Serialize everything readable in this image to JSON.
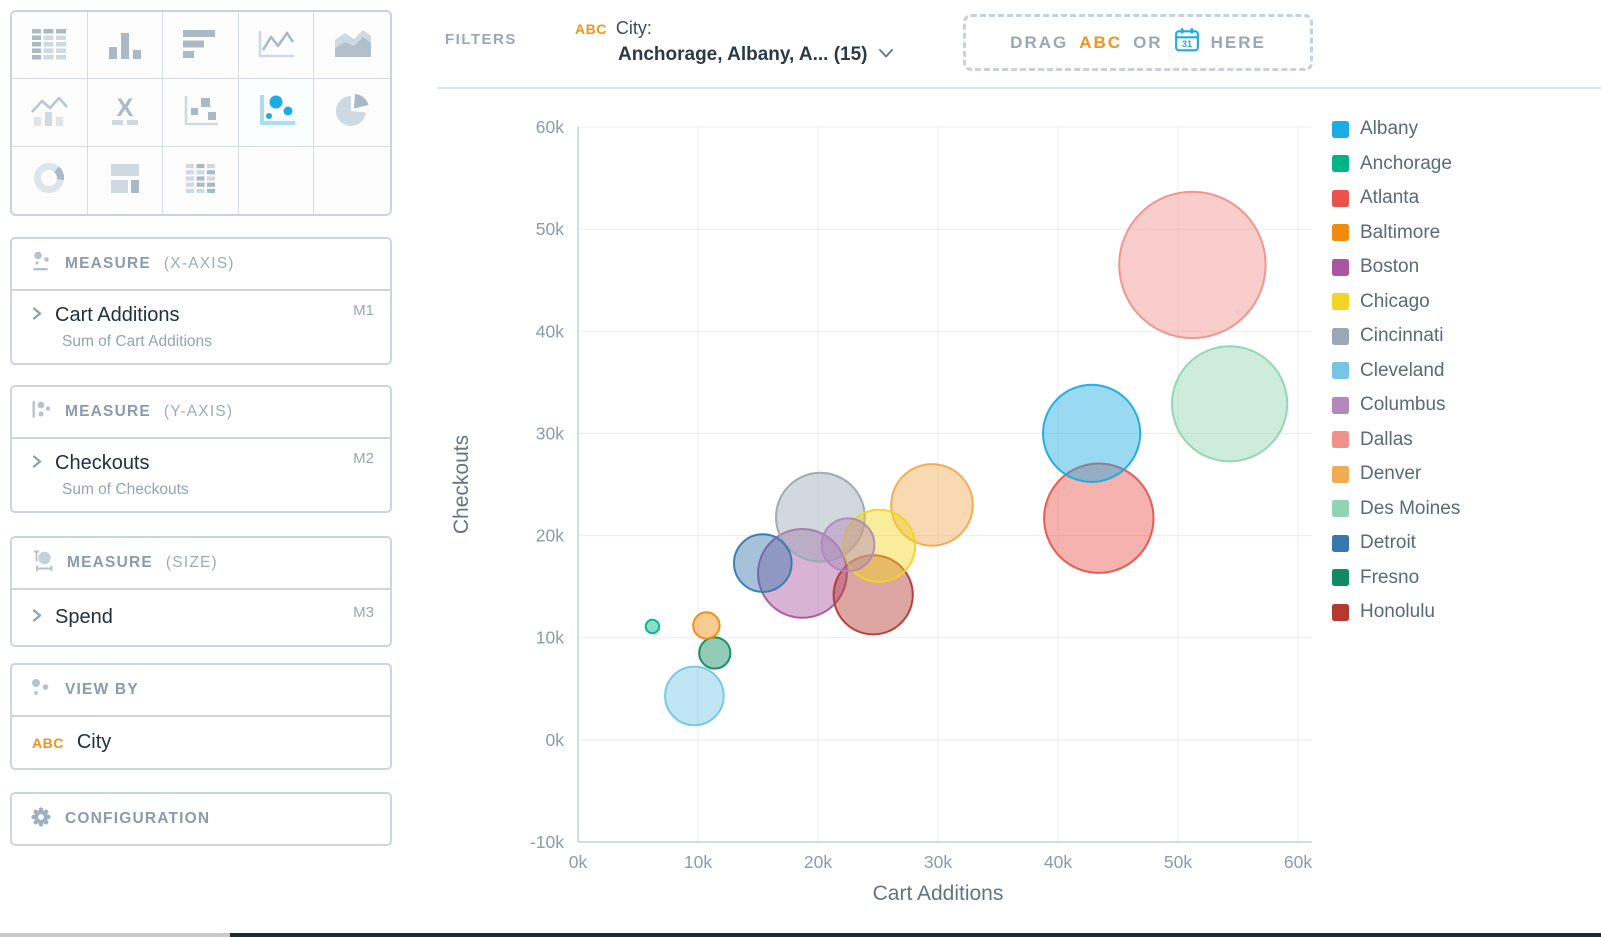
{
  "filter_bar": {
    "filters_label": "FILTERS",
    "filter": {
      "type_badge": "ABC",
      "field_label": "City:",
      "value": "Anchorage, Albany, A... (15)"
    },
    "drop_zone": {
      "word_drag": "DRAG",
      "word_abc": "ABC",
      "word_or": "OR",
      "word_here": "HERE",
      "calendar_day": "31"
    }
  },
  "sidebar": {
    "chart_picker": {
      "items": [
        {
          "icon": "table",
          "active": false
        },
        {
          "icon": "bar",
          "active": false
        },
        {
          "icon": "horizontal-bar",
          "active": false
        },
        {
          "icon": "line",
          "active": false
        },
        {
          "icon": "area",
          "active": false
        },
        {
          "icon": "combo",
          "active": false
        },
        {
          "icon": "x-metric",
          "active": false
        },
        {
          "icon": "scatter",
          "active": false
        },
        {
          "icon": "bubble",
          "active": true
        },
        {
          "icon": "pie",
          "active": false
        },
        {
          "icon": "donut",
          "active": false
        },
        {
          "icon": "layout",
          "active": false
        },
        {
          "icon": "pivot",
          "active": false
        },
        {
          "icon": "blank",
          "active": false
        },
        {
          "icon": "blank",
          "active": false
        }
      ]
    },
    "measure_x": {
      "title": "MEASURE",
      "subtitle": "(X-AXIS)",
      "field": "Cart Additions",
      "badge": "M1",
      "description": "Sum of Cart Additions"
    },
    "measure_y": {
      "title": "MEASURE",
      "subtitle": "(Y-AXIS)",
      "field": "Checkouts",
      "badge": "M2",
      "description": "Sum of Checkouts"
    },
    "measure_size": {
      "title": "MEASURE",
      "subtitle": "(SIZE)",
      "field": "Spend",
      "badge": "M3"
    },
    "view_by": {
      "title": "VIEW BY",
      "type_badge": "ABC",
      "field": "City"
    },
    "configuration": {
      "title": "CONFIGURATION"
    }
  },
  "chart_data": {
    "type": "bubble",
    "title": "",
    "xlabel": "Cart Additions",
    "ylabel": "Checkouts",
    "xlim": [
      0,
      60000
    ],
    "ylim": [
      -10000,
      60000
    ],
    "grid": true,
    "legend_position": "right",
    "size_measure": "Spend",
    "r_units": "x-axis units (Spend magnitudes are not labeled on screen; radii estimated from pixels)",
    "x_ticks": [
      {
        "value": 0,
        "label": "0k"
      },
      {
        "value": 10000,
        "label": "10k"
      },
      {
        "value": 20000,
        "label": "20k"
      },
      {
        "value": 30000,
        "label": "30k"
      },
      {
        "value": 40000,
        "label": "40k"
      },
      {
        "value": 50000,
        "label": "50k"
      },
      {
        "value": 60000,
        "label": "60k"
      }
    ],
    "y_ticks": [
      {
        "value": 60000,
        "label": "60k"
      },
      {
        "value": 50000,
        "label": "50k"
      },
      {
        "value": 40000,
        "label": "40k"
      },
      {
        "value": 30000,
        "label": "30k"
      },
      {
        "value": 20000,
        "label": "20k"
      },
      {
        "value": 10000,
        "label": "10k"
      },
      {
        "value": 0,
        "label": "0k"
      },
      {
        "value": -10000,
        "label": "-10k"
      }
    ],
    "series": [
      {
        "name": "Albany",
        "color": "#1cabe3",
        "x": 42800,
        "y": 30000,
        "r": 4050
      },
      {
        "name": "Anchorage",
        "color": "#00b487",
        "x": 6200,
        "y": 11100,
        "r": 560
      },
      {
        "name": "Atlanta",
        "color": "#e8544b",
        "x": 43400,
        "y": 21700,
        "r": 4560
      },
      {
        "name": "Baltimore",
        "color": "#f08b0b",
        "x": 10700,
        "y": 11200,
        "r": 1100
      },
      {
        "name": "Boston",
        "color": "#a9569e",
        "x": 18700,
        "y": 16300,
        "r": 3700
      },
      {
        "name": "Chicago",
        "color": "#f2d522",
        "x": 25100,
        "y": 19000,
        "r": 3000
      },
      {
        "name": "Cincinnati",
        "color": "#9aa8b5",
        "x": 20200,
        "y": 21800,
        "r": 3700
      },
      {
        "name": "Cleveland",
        "color": "#74c6e4",
        "x": 9700,
        "y": 4300,
        "r": 2440
      },
      {
        "name": "Columbus",
        "color": "#b288bd",
        "x": 22500,
        "y": 19100,
        "r": 2200
      },
      {
        "name": "Dallas",
        "color": "#f0918c",
        "x": 51200,
        "y": 46500,
        "r": 6100
      },
      {
        "name": "Denver",
        "color": "#f0ab53",
        "x": 29500,
        "y": 23000,
        "r": 3400
      },
      {
        "name": "Des Moines",
        "color": "#90d4b1",
        "x": 54300,
        "y": 32900,
        "r": 4800
      },
      {
        "name": "Detroit",
        "color": "#3878ad",
        "x": 15400,
        "y": 17300,
        "r": 2400
      },
      {
        "name": "Fresno",
        "color": "#0f8a61",
        "x": 11400,
        "y": 8500,
        "r": 1300
      },
      {
        "name": "Honolulu",
        "color": "#b43a31",
        "x": 24600,
        "y": 14200,
        "r": 3300
      }
    ]
  }
}
